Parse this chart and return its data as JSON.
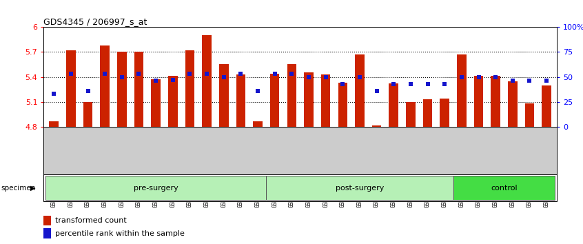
{
  "title": "GDS4345 / 206997_s_at",
  "samples": [
    "GSM842012",
    "GSM842013",
    "GSM842014",
    "GSM842015",
    "GSM842016",
    "GSM842017",
    "GSM842018",
    "GSM842019",
    "GSM842020",
    "GSM842021",
    "GSM842022",
    "GSM842023",
    "GSM842024",
    "GSM842025",
    "GSM842026",
    "GSM842027",
    "GSM842028",
    "GSM842029",
    "GSM842030",
    "GSM842031",
    "GSM842032",
    "GSM842033",
    "GSM842034",
    "GSM842035",
    "GSM842036",
    "GSM842037",
    "GSM842038",
    "GSM842039",
    "GSM842040",
    "GSM842041"
  ],
  "bar_values": [
    4.87,
    5.72,
    5.1,
    5.78,
    5.7,
    5.7,
    5.37,
    5.41,
    5.72,
    5.9,
    5.55,
    5.43,
    4.87,
    5.44,
    5.55,
    5.45,
    5.43,
    5.33,
    5.67,
    4.82,
    5.32,
    5.1,
    5.13,
    5.14,
    5.67,
    5.41,
    5.41,
    5.35,
    5.08,
    5.3
  ],
  "percentile_values": [
    33,
    53,
    36,
    53,
    50,
    53,
    46,
    47,
    53,
    53,
    50,
    53,
    36,
    53,
    53,
    50,
    50,
    43,
    50,
    36,
    43,
    43,
    43,
    43,
    50,
    50,
    50,
    46,
    46,
    46
  ],
  "groups": [
    {
      "label": "pre-surgery",
      "start": 0,
      "end": 13,
      "color": "#b6f0b6"
    },
    {
      "label": "post-surgery",
      "start": 13,
      "end": 24,
      "color": "#b6f0b6"
    },
    {
      "label": "control",
      "start": 24,
      "end": 30,
      "color": "#44dd44"
    }
  ],
  "ymin": 4.8,
  "ymax": 6.0,
  "yticks_left": [
    4.8,
    5.1,
    5.4,
    5.7,
    6.0
  ],
  "ytick_labels_left": [
    "4.8",
    "5.1",
    "5.4",
    "5.7",
    "6"
  ],
  "yticks_right": [
    0,
    25,
    50,
    75,
    100
  ],
  "ytick_labels_right": [
    "0",
    "25",
    "50",
    "75",
    "100%"
  ],
  "hlines": [
    5.1,
    5.4,
    5.7
  ],
  "bar_color": "#CC2200",
  "dot_color": "#1515cc",
  "bar_width": 0.55,
  "xticklabel_fontsize": 5.5,
  "title_fontsize": 9,
  "gray_bg": "#cccccc",
  "group_border_color": "#555555"
}
